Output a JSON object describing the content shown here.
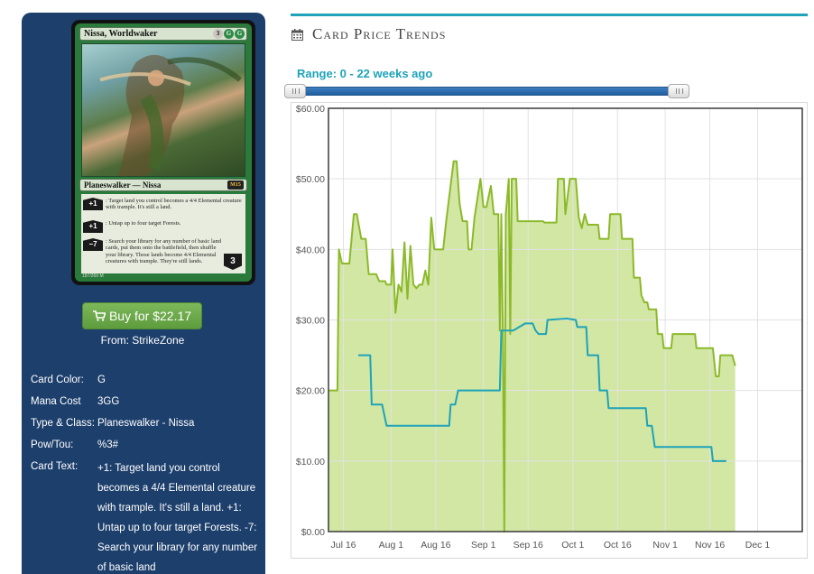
{
  "card": {
    "name": "Nissa, Worldwaker",
    "mana_cost_display": "3GG",
    "mana_pips": [
      "3",
      "G",
      "G"
    ],
    "type_line": "Planeswalker — Nissa",
    "abilities": [
      {
        "loyalty": "+1",
        "text": ": Target land you control becomes a 4/4 Elemental creature with trample. It's still a land."
      },
      {
        "loyalty": "+1",
        "text": ": Untap up to four target Forests."
      },
      {
        "loyalty": "−7",
        "text": ": Search your library for any number of basic land cards, put them onto the battlefield, then shuffle your library. Those lands become 4/4 Elemental creatures with trample. They're still lands."
      }
    ],
    "starting_loyalty": "3",
    "collector_number": "187/269 M"
  },
  "buy": {
    "label": "Buy for $22.17",
    "from": "From: StrikeZone",
    "icon": "shopping-cart-icon"
  },
  "attributes": [
    {
      "key": "Card Color:",
      "value": "G"
    },
    {
      "key": "Mana Cost",
      "value": "3GG"
    },
    {
      "key": "Type & Class:",
      "value": "Planeswalker - Nissa"
    },
    {
      "key": "Pow/Tou:",
      "value": "%3#"
    },
    {
      "key": "Card Text:",
      "value": "+1: Target land you control becomes a 4/4 Elemental creature with trample. It's still a land. +1: Untap up to four target Forests. -7: Search your library for any number of basic land"
    }
  ],
  "section": {
    "title": "Card Price Trends",
    "icon": "calendar-icon"
  },
  "range": {
    "label": "Range: 0 - 22 weeks ago",
    "min": 0,
    "max": 22,
    "low": 0,
    "high": 22
  },
  "colors": {
    "sidebar": "#1d3f6c",
    "accent": "#1ea3b8",
    "buy_button": "#6aab4a",
    "series_green_line": "#8cb92b",
    "series_green_fill": "#d2e7a4",
    "series_blue_line": "#1ea3b8"
  },
  "chart_data": {
    "type": "area",
    "x_ticks": [
      "Jul 16",
      "Aug 1",
      "Aug 16",
      "Sep 1",
      "Sep 16",
      "Oct 1",
      "Oct 16",
      "Nov 1",
      "Nov 16",
      "Dec 1"
    ],
    "x_tick_days": [
      0,
      16,
      31,
      47,
      62,
      77,
      92,
      108,
      123,
      139
    ],
    "xlim_days": [
      -5,
      154
    ],
    "x_origin": "Jul 16",
    "y_ticks": [
      "$0.00",
      "$10.00",
      "$20.00",
      "$30.00",
      "$40.00",
      "$50.00",
      "$60.00"
    ],
    "ylim": [
      0,
      60
    ],
    "grid": true,
    "series": [
      {
        "fill": true,
        "points": [
          [
            -5,
            20
          ],
          [
            -2,
            20
          ],
          [
            -1.5,
            40
          ],
          [
            -0.5,
            38
          ],
          [
            2,
            38
          ],
          [
            3.5,
            45
          ],
          [
            4.5,
            45
          ],
          [
            6,
            41.5
          ],
          [
            7.5,
            41.5
          ],
          [
            8.5,
            36.5
          ],
          [
            11,
            36.5
          ],
          [
            12,
            35.5
          ],
          [
            14,
            35.5
          ],
          [
            14.5,
            35
          ],
          [
            16,
            35
          ],
          [
            16.5,
            40
          ],
          [
            17.5,
            31
          ],
          [
            18.5,
            35
          ],
          [
            19.5,
            34
          ],
          [
            20.5,
            41
          ],
          [
            21.5,
            33
          ],
          [
            22.5,
            40.5
          ],
          [
            23.5,
            35
          ],
          [
            24.5,
            34.5
          ],
          [
            25.5,
            35
          ],
          [
            26.5,
            35
          ],
          [
            27.5,
            37
          ],
          [
            28.5,
            35
          ],
          [
            29.5,
            44.5
          ],
          [
            30.5,
            40
          ],
          [
            33.5,
            40
          ],
          [
            34.5,
            44
          ],
          [
            37,
            52.5
          ],
          [
            38,
            52.5
          ],
          [
            39,
            46.5
          ],
          [
            40,
            44
          ],
          [
            41.5,
            44
          ],
          [
            42,
            40
          ],
          [
            43,
            40
          ],
          [
            44,
            44.5
          ],
          [
            46,
            50
          ],
          [
            47,
            46
          ],
          [
            48,
            46
          ],
          [
            49.5,
            49
          ],
          [
            50.5,
            45
          ],
          [
            52,
            45
          ],
          [
            52.5,
            28.5
          ],
          [
            53,
            45
          ],
          [
            53.5,
            29
          ],
          [
            54,
            0
          ],
          [
            54.5,
            45
          ],
          [
            55.5,
            50
          ],
          [
            56,
            28
          ],
          [
            56.5,
            50
          ],
          [
            58,
            50
          ],
          [
            58.5,
            44
          ],
          [
            66.5,
            44
          ],
          [
            67,
            44
          ],
          [
            67.5,
            43.8
          ],
          [
            71.5,
            43.8
          ],
          [
            72,
            50
          ],
          [
            74,
            50
          ],
          [
            74.5,
            45
          ],
          [
            76,
            50
          ],
          [
            78,
            50
          ],
          [
            79,
            44.5
          ],
          [
            80,
            43
          ],
          [
            81,
            45
          ],
          [
            82,
            43.5
          ],
          [
            85.5,
            43.5
          ],
          [
            86,
            41.5
          ],
          [
            89,
            41.5
          ],
          [
            89.5,
            45
          ],
          [
            93,
            45
          ],
          [
            93.5,
            41.5
          ],
          [
            97,
            41.5
          ],
          [
            97.5,
            36
          ],
          [
            99.5,
            36
          ],
          [
            100,
            33.5
          ],
          [
            101,
            32.5
          ],
          [
            102,
            32.5
          ],
          [
            102.5,
            31.5
          ],
          [
            105,
            31.5
          ],
          [
            105.5,
            28
          ],
          [
            107,
            28
          ],
          [
            107.5,
            26
          ],
          [
            110,
            26
          ],
          [
            110.5,
            28
          ],
          [
            118,
            28
          ],
          [
            118.5,
            26
          ],
          [
            124,
            26
          ],
          [
            125,
            22
          ],
          [
            126,
            22
          ],
          [
            126.5,
            25
          ],
          [
            130.5,
            25
          ],
          [
            131.5,
            23.5
          ]
        ]
      },
      {
        "fill": false,
        "points": [
          [
            5,
            25
          ],
          [
            9,
            25
          ],
          [
            9.5,
            18
          ],
          [
            13,
            18
          ],
          [
            14.5,
            15
          ],
          [
            27,
            15
          ],
          [
            35.5,
            15
          ],
          [
            36,
            18
          ],
          [
            37.5,
            18
          ],
          [
            38.5,
            20
          ],
          [
            52.5,
            20
          ],
          [
            53,
            28.5
          ],
          [
            57,
            28.5
          ],
          [
            61,
            29.5
          ],
          [
            63.5,
            29.5
          ],
          [
            64.5,
            28.5
          ],
          [
            65.5,
            28
          ],
          [
            68,
            28
          ],
          [
            68.5,
            30
          ],
          [
            75,
            30.2
          ],
          [
            78,
            30
          ],
          [
            78.5,
            29
          ],
          [
            81.5,
            29
          ],
          [
            82,
            25
          ],
          [
            85.5,
            25
          ],
          [
            86,
            20
          ],
          [
            88.5,
            20
          ],
          [
            89,
            17.5
          ],
          [
            101.5,
            17.5
          ],
          [
            102,
            15
          ],
          [
            103.5,
            15
          ],
          [
            104.5,
            12
          ],
          [
            123.5,
            12
          ],
          [
            124,
            10
          ],
          [
            128.5,
            10
          ]
        ]
      }
    ]
  }
}
